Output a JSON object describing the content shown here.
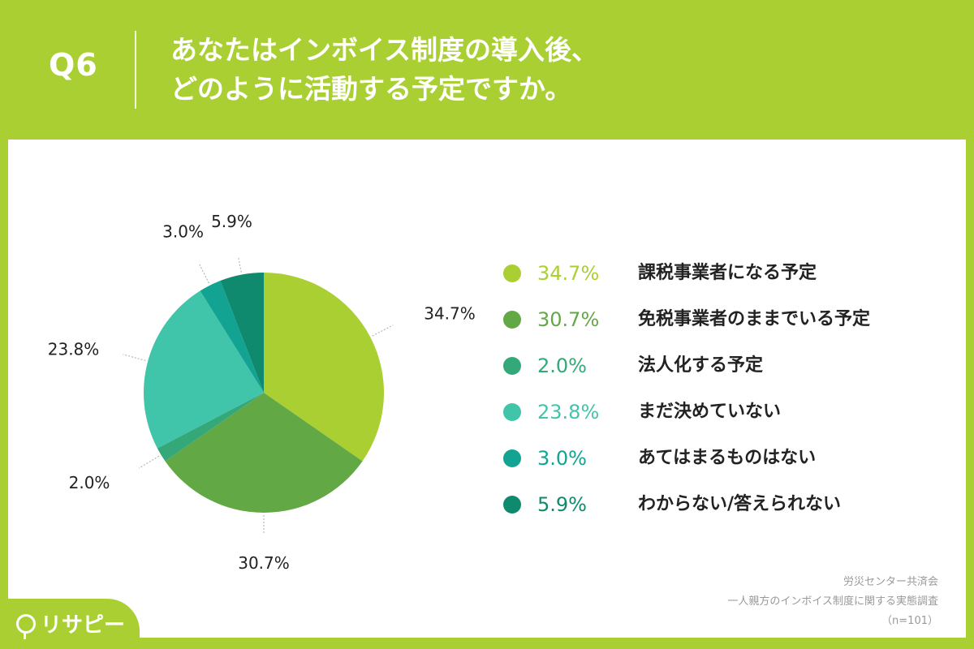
{
  "header": {
    "question_number": "Q6",
    "question_line1": "あなたはインボイス制度の導入後、",
    "question_line2": "どのように活動する予定ですか。"
  },
  "chart_data": {
    "type": "pie",
    "categories": [
      "課税事業者になる予定",
      "免税事業者のままでいる予定",
      "法人化する予定",
      "まだ決めていない",
      "あてはまるものはない",
      "わからない/答えられない"
    ],
    "values": [
      34.7,
      30.7,
      2.0,
      23.8,
      3.0,
      5.9
    ],
    "value_labels": [
      "34.7%",
      "30.7%",
      "2.0%",
      "23.8%",
      "3.0%",
      "5.9%"
    ],
    "colors": [
      "#a9cf33",
      "#62a845",
      "#34a878",
      "#40c4aa",
      "#12a392",
      "#108a6e"
    ],
    "legend_placement": "right"
  },
  "source": {
    "line1": "労災センター共済会",
    "line2": "一人親方のインボイス制度に関する実態調査",
    "line3": "（n=101）"
  },
  "logo": {
    "text": "リサピー"
  }
}
